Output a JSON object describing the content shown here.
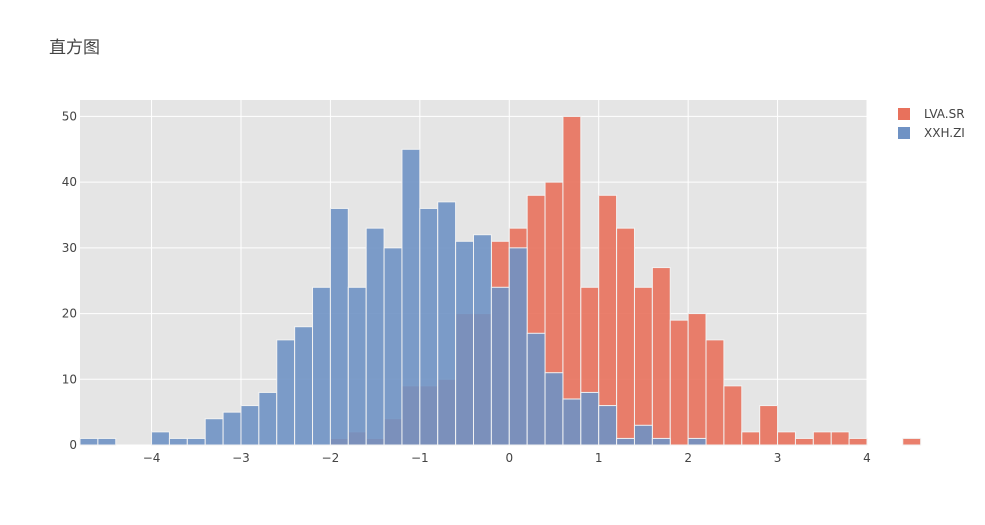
{
  "chart_data": {
    "type": "bar",
    "title": "直方图",
    "xlabel": "",
    "ylabel": "",
    "xlim": [
      -4.8,
      4.0
    ],
    "ylim": [
      0,
      52.5
    ],
    "bin_width": 0.2,
    "bin_start": -4.8,
    "x_ticks": [
      -4,
      -3,
      -2,
      -1,
      0,
      1,
      2,
      3,
      4
    ],
    "x_tick_labels": [
      "−4",
      "−3",
      "−2",
      "−1",
      "0",
      "1",
      "2",
      "3",
      "4"
    ],
    "y_ticks": [
      0,
      10,
      20,
      30,
      40,
      50
    ],
    "y_tick_labels": [
      "0",
      "10",
      "20",
      "30",
      "40",
      "50"
    ],
    "grid": true,
    "legend_position": "top-right",
    "background_color": "#e5e5e5",
    "series": [
      {
        "name": "LVA.SR",
        "color": "#e8715c",
        "values": [
          0,
          0,
          0,
          0,
          0,
          0,
          0,
          0,
          0,
          0,
          0,
          0,
          0,
          0,
          1,
          2,
          1,
          4,
          9,
          9,
          10,
          20,
          20,
          31,
          33,
          38,
          40,
          50,
          24,
          38,
          33,
          24,
          27,
          19,
          20,
          16,
          9,
          2,
          6,
          2,
          1,
          2,
          2,
          1,
          0,
          0,
          1
        ]
      },
      {
        "name": "XXH.ZI",
        "color": "#6f92c4",
        "values": [
          1,
          1,
          0,
          0,
          2,
          1,
          1,
          4,
          5,
          6,
          8,
          16,
          18,
          24,
          36,
          24,
          33,
          30,
          45,
          36,
          37,
          31,
          32,
          24,
          30,
          17,
          11,
          7,
          8,
          6,
          1,
          3,
          1,
          0,
          1,
          0,
          0,
          0,
          0,
          0,
          0,
          0,
          0,
          0,
          0
        ]
      }
    ]
  }
}
